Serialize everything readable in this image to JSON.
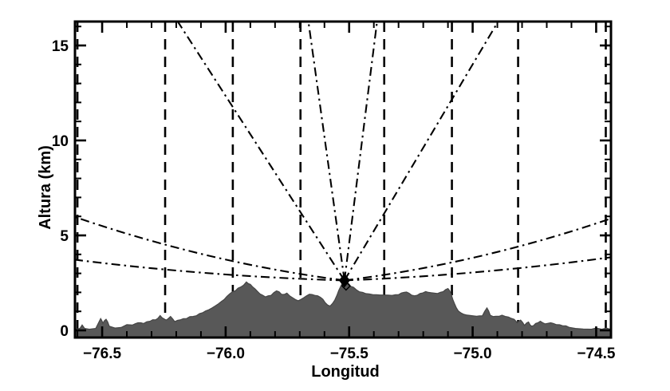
{
  "figure": {
    "background": "#ffffff"
  },
  "chart_data": {
    "type": "area",
    "title": "",
    "xlabel": "Longitud",
    "ylabel": "Altura (km)",
    "xlim": [
      -76.61,
      -74.44
    ],
    "ylim": [
      -0.378,
      16.26
    ],
    "grid": false,
    "x_major_ticks": [
      {
        "v": -76.5,
        "label": "−76.5"
      },
      {
        "v": -76.0,
        "label": "−76.0"
      },
      {
        "v": -75.5,
        "label": "−75.5"
      },
      {
        "v": -75.0,
        "label": "−75.0"
      },
      {
        "v": -74.5,
        "label": "−74.5"
      }
    ],
    "x_minor_step": 0.1,
    "y_major_ticks": [
      {
        "v": 0,
        "label": "0"
      },
      {
        "v": 5,
        "label": "5"
      },
      {
        "v": 10,
        "label": "10"
      },
      {
        "v": 15,
        "label": "15"
      }
    ],
    "y_minor_step": 1,
    "colors": {
      "line": "#000000",
      "terrain_fill": "#585858",
      "terrain_edge": "#454545",
      "background": "#ffffff"
    },
    "radar_marker": {
      "lon": -75.519,
      "alt_km": 2.63,
      "shape": "filled-diamond"
    },
    "range_marker_lines": {
      "style": "dashed",
      "lons": [
        -76.6,
        -76.245,
        -75.971,
        -75.697,
        -75.358,
        -75.084,
        -74.816,
        -74.461
      ]
    },
    "beams": {
      "style": "dash-dot",
      "origin": {
        "lon": -75.519,
        "alt_km": 2.63
      },
      "top_alt_km": 16.26,
      "steep_top_lons": [
        -76.194,
        -75.665,
        -75.387,
        -74.897
      ],
      "low": [
        {
          "edge_lon": -76.61,
          "edge_alt_km": 5.97,
          "sag_km": 0.38
        },
        {
          "edge_lon": -76.61,
          "edge_alt_km": 3.72,
          "sag_km": 0.17
        },
        {
          "edge_lon": -74.44,
          "edge_alt_km": 5.89,
          "sag_km": 0.38
        },
        {
          "edge_lon": -74.44,
          "edge_alt_km": 3.85,
          "sag_km": 0.17
        }
      ]
    },
    "terrain_profile": [
      [
        -76.61,
        0.05
      ],
      [
        -76.59,
        0.1
      ],
      [
        -76.581,
        0.28
      ],
      [
        -76.571,
        0.1
      ],
      [
        -76.552,
        0.06
      ],
      [
        -76.526,
        0.1
      ],
      [
        -76.506,
        0.62
      ],
      [
        -76.497,
        0.38
      ],
      [
        -76.484,
        0.58
      ],
      [
        -76.471,
        0.22
      ],
      [
        -76.448,
        0.12
      ],
      [
        -76.423,
        0.15
      ],
      [
        -76.4,
        0.3
      ],
      [
        -76.377,
        0.28
      ],
      [
        -76.355,
        0.4
      ],
      [
        -76.332,
        0.36
      ],
      [
        -76.306,
        0.48
      ],
      [
        -76.284,
        0.55
      ],
      [
        -76.265,
        0.78
      ],
      [
        -76.252,
        0.62
      ],
      [
        -76.239,
        0.55
      ],
      [
        -76.223,
        0.73
      ],
      [
        -76.206,
        0.46
      ],
      [
        -76.184,
        0.55
      ],
      [
        -76.158,
        0.62
      ],
      [
        -76.132,
        0.73
      ],
      [
        -76.106,
        0.88
      ],
      [
        -76.081,
        1.02
      ],
      [
        -76.055,
        1.18
      ],
      [
        -76.029,
        1.4
      ],
      [
        -76.006,
        1.62
      ],
      [
        -75.984,
        1.92
      ],
      [
        -75.961,
        2.08
      ],
      [
        -75.939,
        2.28
      ],
      [
        -75.916,
        2.55
      ],
      [
        -75.9,
        2.42
      ],
      [
        -75.881,
        2.18
      ],
      [
        -75.861,
        1.92
      ],
      [
        -75.839,
        1.76
      ],
      [
        -75.816,
        1.84
      ],
      [
        -75.794,
        2.08
      ],
      [
        -75.774,
        1.9
      ],
      [
        -75.752,
        1.96
      ],
      [
        -75.729,
        1.72
      ],
      [
        -75.706,
        1.56
      ],
      [
        -75.684,
        1.72
      ],
      [
        -75.661,
        1.9
      ],
      [
        -75.639,
        1.84
      ],
      [
        -75.616,
        1.74
      ],
      [
        -75.597,
        1.46
      ],
      [
        -75.577,
        1.28
      ],
      [
        -75.558,
        1.6
      ],
      [
        -75.542,
        2.1
      ],
      [
        -75.529,
        2.46
      ],
      [
        -75.519,
        2.58
      ],
      [
        -75.506,
        2.5
      ],
      [
        -75.494,
        2.32
      ],
      [
        -75.471,
        2.14
      ],
      [
        -75.445,
        2.0
      ],
      [
        -75.419,
        1.92
      ],
      [
        -75.39,
        1.88
      ],
      [
        -75.358,
        1.86
      ],
      [
        -75.326,
        1.84
      ],
      [
        -75.3,
        1.88
      ],
      [
        -75.277,
        2.0
      ],
      [
        -75.258,
        1.96
      ],
      [
        -75.235,
        1.82
      ],
      [
        -75.213,
        1.94
      ],
      [
        -75.19,
        2.04
      ],
      [
        -75.168,
        1.98
      ],
      [
        -75.142,
        1.94
      ],
      [
        -75.119,
        2.04
      ],
      [
        -75.1,
        2.2
      ],
      [
        -75.087,
        1.92
      ],
      [
        -75.074,
        1.42
      ],
      [
        -75.058,
        1.02
      ],
      [
        -75.035,
        0.84
      ],
      [
        -75.01,
        0.78
      ],
      [
        -74.984,
        0.74
      ],
      [
        -74.961,
        0.76
      ],
      [
        -74.942,
        1.18
      ],
      [
        -74.929,
        0.8
      ],
      [
        -74.906,
        0.74
      ],
      [
        -74.881,
        0.8
      ],
      [
        -74.855,
        0.7
      ],
      [
        -74.832,
        0.58
      ],
      [
        -74.819,
        0.4
      ],
      [
        -74.806,
        0.54
      ],
      [
        -74.79,
        0.26
      ],
      [
        -74.774,
        0.44
      ],
      [
        -74.761,
        0.22
      ],
      [
        -74.745,
        0.36
      ],
      [
        -74.726,
        0.48
      ],
      [
        -74.706,
        0.34
      ],
      [
        -74.684,
        0.4
      ],
      [
        -74.661,
        0.3
      ],
      [
        -74.635,
        0.24
      ],
      [
        -74.61,
        0.16
      ],
      [
        -74.584,
        0.1
      ],
      [
        -74.552,
        0.07
      ],
      [
        -74.519,
        0.06
      ],
      [
        -74.5,
        0.12
      ],
      [
        -74.477,
        0.06
      ],
      [
        -74.458,
        0.12
      ],
      [
        -74.442,
        0.05
      ]
    ]
  }
}
